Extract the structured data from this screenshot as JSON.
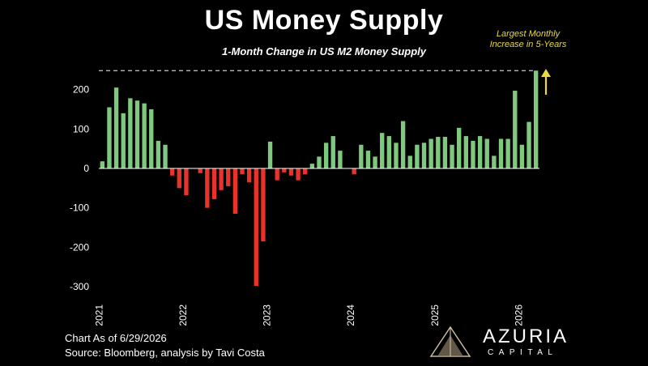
{
  "chart_data": {
    "type": "bar",
    "title": "US Money Supply",
    "subtitle": "1-Month Change in US M2 Money Supply",
    "annotation": "Largest Monthly Increase in 5-Years",
    "ylim": [
      -300,
      250
    ],
    "yticks": [
      200,
      100,
      0,
      -100,
      -200,
      -300
    ],
    "xticks": [
      "2021",
      "2022",
      "2023",
      "2024",
      "2025",
      "2026"
    ],
    "grid": false,
    "colors": {
      "positive": "#7fc97f",
      "negative": "#e8322a",
      "reference": "#cccccc",
      "annotation": "#e8d84a"
    },
    "values": [
      18,
      155,
      205,
      140,
      178,
      172,
      165,
      150,
      70,
      60,
      -18,
      -50,
      -68,
      0,
      -12,
      -100,
      -78,
      -55,
      -45,
      -115,
      -15,
      -35,
      -298,
      -185,
      68,
      -30,
      -10,
      -18,
      -30,
      -15,
      12,
      30,
      65,
      82,
      45,
      0,
      -15,
      60,
      45,
      30,
      90,
      82,
      65,
      120,
      32,
      60,
      65,
      75,
      80,
      80,
      60,
      103,
      82,
      70,
      82,
      75,
      32,
      75,
      75,
      197,
      60,
      118,
      248
    ]
  },
  "footnote": {
    "date_line": "Chart As of 6/29/2026",
    "source_line": "Source: Bloomberg, analysis by Tavi Costa"
  },
  "brand": {
    "name": "AZURIA",
    "sub": "CAPITAL"
  }
}
